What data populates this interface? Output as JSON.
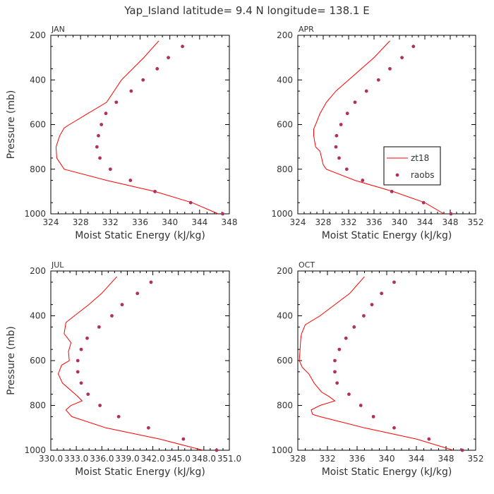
{
  "title": "Yap_Island  latitude= 9.4 N longitude= 138.1 E",
  "colors": {
    "model": "#ff0000",
    "obs": "#b03060",
    "axis": "#000000",
    "text": "#333333"
  },
  "legend": {
    "entries": [
      "zt18",
      "raobs"
    ],
    "placement": "inside APR panel, right"
  },
  "chart_data": [
    {
      "type": "line",
      "panel": "JAN",
      "xlabel": "Moist Static Energy (kJ/kg)",
      "ylabel": "Pressure (mb)",
      "xlim": [
        324,
        348
      ],
      "ylim": [
        1000,
        200
      ],
      "xticks": [
        "324",
        "328",
        "332",
        "336",
        "340",
        "344",
        "348"
      ],
      "yticks": [
        "200",
        "400",
        "600",
        "800",
        "1000"
      ],
      "series": [
        {
          "name": "zt18",
          "kind": "line",
          "p": [
            225,
            300,
            400,
            500,
            550,
            600,
            615,
            650,
            700,
            750,
            800,
            850,
            900,
            950,
            1000
          ],
          "x": [
            338.5,
            336.5,
            333.5,
            331.5,
            329.0,
            326.5,
            325.8,
            325.2,
            324.7,
            324.8,
            325.8,
            331.5,
            338.0,
            343.0,
            346.5
          ]
        },
        {
          "name": "raobs",
          "kind": "scatter",
          "p": [
            250,
            300,
            350,
            400,
            450,
            500,
            550,
            600,
            650,
            700,
            750,
            800,
            850,
            900,
            950,
            1000
          ],
          "x": [
            341.7,
            339.8,
            338.3,
            336.4,
            334.8,
            332.8,
            331.4,
            330.8,
            330.4,
            330.2,
            330.6,
            332.0,
            334.7,
            338.0,
            342.8,
            347.1
          ]
        }
      ]
    },
    {
      "type": "line",
      "panel": "APR",
      "xlabel": "Moist Static Energy (kJ/kg)",
      "ylabel": "",
      "xlim": [
        324,
        352
      ],
      "ylim": [
        1000,
        200
      ],
      "xticks": [
        "324",
        "328",
        "332",
        "336",
        "340",
        "344",
        "348",
        "352"
      ],
      "yticks": [
        "200",
        "400",
        "600",
        "800",
        "1000"
      ],
      "series": [
        {
          "name": "zt18",
          "kind": "line",
          "p": [
            225,
            300,
            400,
            450,
            500,
            550,
            600,
            620,
            650,
            700,
            720,
            780,
            800,
            850,
            900,
            950,
            1000
          ],
          "x": [
            338.5,
            336.0,
            332.0,
            330.0,
            328.5,
            327.5,
            326.8,
            326.5,
            326.5,
            326.8,
            327.5,
            328.0,
            328.5,
            333.0,
            339.0,
            344.0,
            347.0
          ]
        },
        {
          "name": "raobs",
          "kind": "scatter",
          "p": [
            250,
            300,
            350,
            400,
            450,
            500,
            550,
            600,
            650,
            700,
            750,
            800,
            850,
            900,
            950,
            1000
          ],
          "x": [
            342.2,
            340.4,
            338.5,
            336.7,
            334.8,
            333.0,
            331.8,
            330.8,
            330.1,
            330.0,
            330.5,
            331.7,
            334.2,
            338.8,
            343.8,
            348.1
          ]
        }
      ]
    },
    {
      "type": "line",
      "panel": "JUL",
      "xlabel": "Moist Static Energy (kJ/kg)",
      "ylabel": "Pressure (mb)",
      "xlim": [
        330.03,
        351.0
      ],
      "ylim": [
        1000,
        200
      ],
      "xticks": [
        "330.0",
        "333.0",
        "336.0",
        "339.0",
        "342.0",
        "345.0",
        "348.0",
        "351.0"
      ],
      "yticks": [
        "200",
        "400",
        "600",
        "800",
        "1000"
      ],
      "series": [
        {
          "name": "zt18",
          "kind": "line",
          "p": [
            225,
            300,
            350,
            400,
            430,
            480,
            520,
            560,
            600,
            620,
            660,
            700,
            760,
            780,
            800,
            820,
            850,
            900,
            950,
            1000
          ],
          "x": [
            337.8,
            336.0,
            334.5,
            332.8,
            331.8,
            331.6,
            332.4,
            332.1,
            332.2,
            331.3,
            330.9,
            331.4,
            333.2,
            333.7,
            332.4,
            331.8,
            332.5,
            336.5,
            342.8,
            347.9
          ]
        },
        {
          "name": "raobs",
          "kind": "scatter",
          "p": [
            250,
            300,
            350,
            400,
            450,
            500,
            550,
            600,
            650,
            700,
            750,
            800,
            850,
            900,
            950,
            1000
          ],
          "x": [
            341.8,
            340.2,
            338.4,
            337.2,
            335.7,
            334.3,
            333.6,
            333.2,
            333.2,
            333.6,
            334.4,
            335.8,
            338.0,
            341.5,
            345.6,
            349.5
          ]
        }
      ]
    },
    {
      "type": "line",
      "panel": "OCT",
      "xlabel": "Moist Static Energy (kJ/kg)",
      "ylabel": "",
      "xlim": [
        328,
        352
      ],
      "ylim": [
        1000,
        200
      ],
      "xticks": [
        "328",
        "332",
        "336",
        "340",
        "344",
        "348",
        "352"
      ],
      "yticks": [
        "200",
        "400",
        "600",
        "800",
        "1000"
      ],
      "series": [
        {
          "name": "zt18",
          "kind": "line",
          "p": [
            225,
            300,
            350,
            400,
            440,
            480,
            500,
            550,
            600,
            630,
            660,
            700,
            740,
            760,
            780,
            800,
            820,
            840,
            850,
            900,
            950,
            1000
          ],
          "x": [
            337.0,
            335.0,
            333.0,
            331.0,
            329.0,
            328.5,
            328.4,
            328.3,
            328.2,
            328.6,
            329.5,
            330.2,
            331.2,
            332.2,
            333.0,
            331.0,
            329.8,
            330.0,
            331.0,
            337.0,
            344.0,
            349.0
          ]
        },
        {
          "name": "raobs",
          "kind": "scatter",
          "p": [
            250,
            300,
            350,
            400,
            450,
            500,
            550,
            600,
            650,
            700,
            750,
            800,
            850,
            900,
            950,
            1000
          ],
          "x": [
            341.0,
            339.3,
            338.0,
            336.9,
            335.6,
            334.5,
            333.6,
            333.0,
            333.0,
            333.3,
            334.9,
            336.5,
            338.2,
            341.0,
            345.7,
            350.2
          ]
        }
      ]
    }
  ]
}
